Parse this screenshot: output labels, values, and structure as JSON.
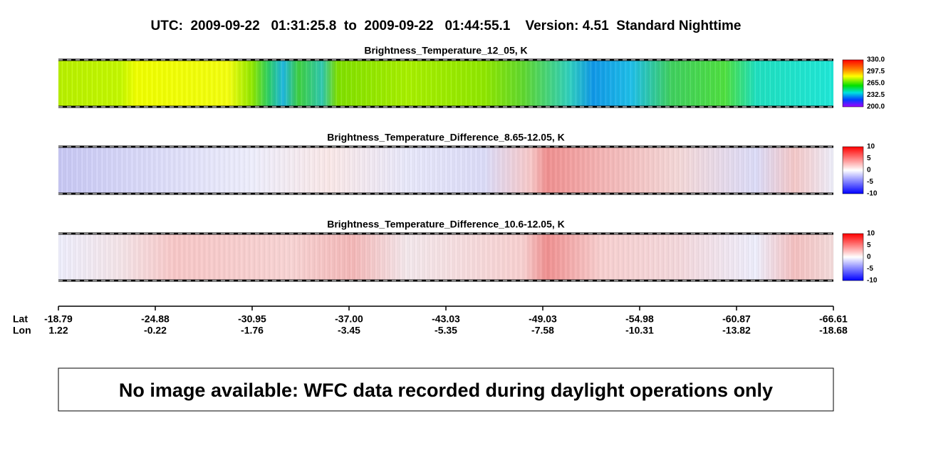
{
  "header": {
    "title": "UTC:  2009-09-22   01:31:25.8  to  2009-09-22   01:44:55.1    Version: 4.51  Standard Nighttime"
  },
  "panels": [
    {
      "title": "Brightness_Temperature_12_05, K",
      "colorbar_labels": [
        "330.0",
        "297.5",
        "265.0",
        "232.5",
        "200.0"
      ]
    },
    {
      "title": "Brightness_Temperature_Difference_8.65-12.05, K",
      "colorbar_labels": [
        "10",
        "5",
        "0",
        "-5",
        "-10"
      ]
    },
    {
      "title": "Brightness_Temperature_Difference_10.6-12.05, K",
      "colorbar_labels": [
        "10",
        "5",
        "0",
        "-5",
        "-10"
      ]
    }
  ],
  "axis": {
    "row_labels": [
      "Lat",
      "Lon"
    ],
    "lat": [
      "-18.79",
      "-24.88",
      "-30.95",
      "-37.00",
      "-43.03",
      "-49.03",
      "-54.98",
      "-60.87",
      "-66.61"
    ],
    "lon": [
      "1.22",
      "-0.22",
      "-1.76",
      "-3.45",
      "-5.35",
      "-7.58",
      "-10.31",
      "-13.82",
      "-18.68"
    ]
  },
  "notice": "No image available: WFC data recorded during daylight operations only"
}
